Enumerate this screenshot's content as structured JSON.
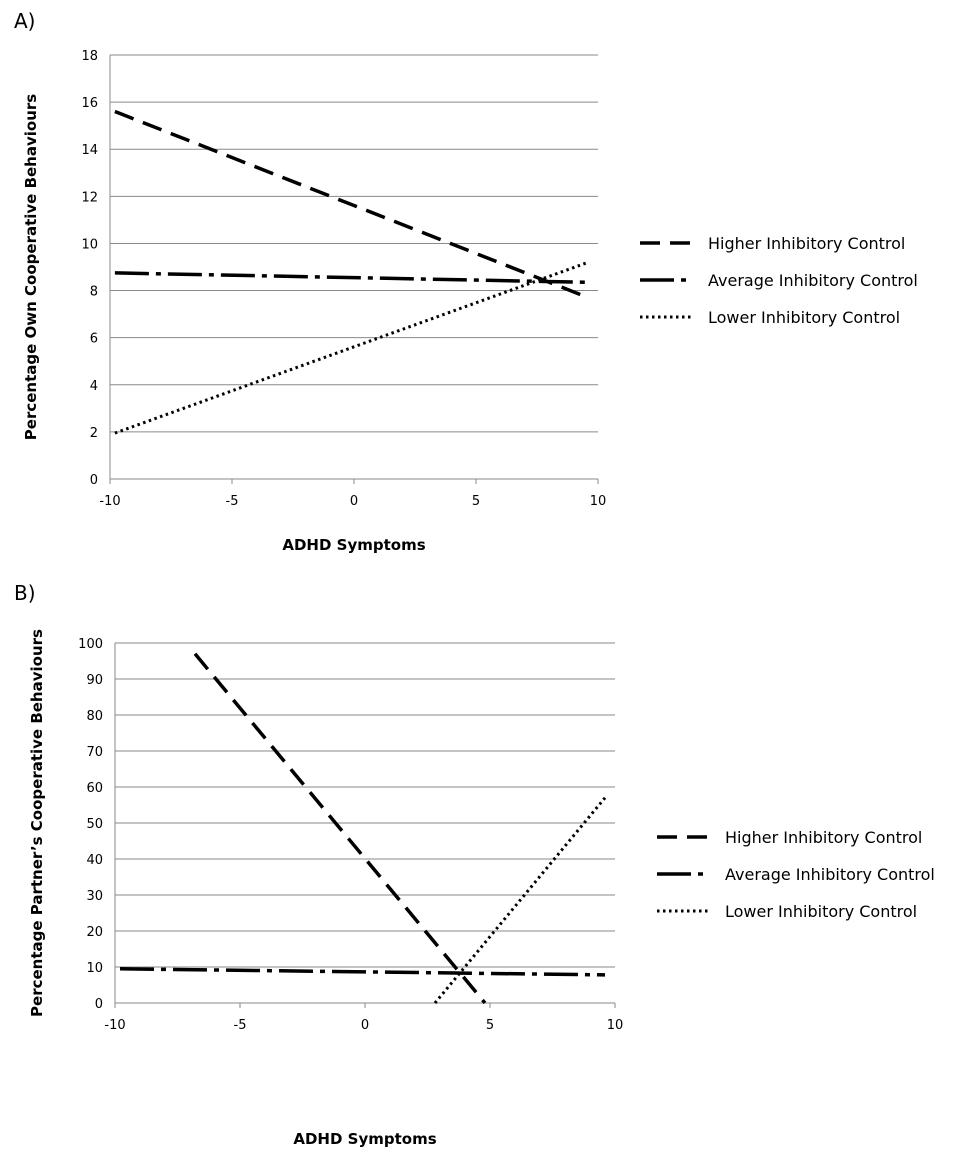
{
  "chart_data": [
    {
      "panel": "A)",
      "type": "line",
      "xlabel": "ADHD Symptoms",
      "ylabel": "Percentage Own Cooperative Behaviours",
      "xlim": [
        -10,
        10
      ],
      "ylim": [
        0,
        18
      ],
      "xticks": [
        "-10",
        "-5",
        "0",
        "5",
        "10"
      ],
      "yticks": [
        "0",
        "2",
        "4",
        "6",
        "8",
        "10",
        "12",
        "14",
        "16",
        "18"
      ],
      "grid": "horizontal",
      "legend_position": "right",
      "series": [
        {
          "name": "Higher Inhibitory Control",
          "style": "dashed",
          "x": [
            -9.8,
            9.6
          ],
          "y": [
            15.6,
            7.7
          ]
        },
        {
          "name": "Average Inhibitory Control",
          "style": "long-dash-dot",
          "x": [
            -9.8,
            9.6
          ],
          "y": [
            8.75,
            8.35
          ]
        },
        {
          "name": "Lower Inhibitory Control",
          "style": "dotted",
          "x": [
            -9.8,
            9.6
          ],
          "y": [
            1.95,
            9.2
          ]
        }
      ]
    },
    {
      "panel": "B)",
      "type": "line",
      "xlabel": "ADHD Symptoms",
      "ylabel": "Percentage Partner’s  Cooperative Behaviours",
      "xlim": [
        -10,
        10
      ],
      "ylim": [
        0,
        100
      ],
      "xticks": [
        "-10",
        "-5",
        "0",
        "5",
        "10"
      ],
      "yticks": [
        "0",
        "10",
        "20",
        "30",
        "40",
        "50",
        "60",
        "70",
        "80",
        "90",
        "100"
      ],
      "grid": "horizontal",
      "legend_position": "right",
      "series": [
        {
          "name": "Higher Inhibitory Control",
          "style": "dashed",
          "x": [
            -6.8,
            4.8
          ],
          "y": [
            97,
            0
          ]
        },
        {
          "name": "Average Inhibitory Control",
          "style": "long-dash-dot",
          "x": [
            -9.8,
            9.6
          ],
          "y": [
            9.5,
            7.8
          ]
        },
        {
          "name": "Lower Inhibitory Control",
          "style": "dotted",
          "x": [
            2.8,
            9.6
          ],
          "y": [
            0,
            57
          ]
        }
      ]
    }
  ]
}
